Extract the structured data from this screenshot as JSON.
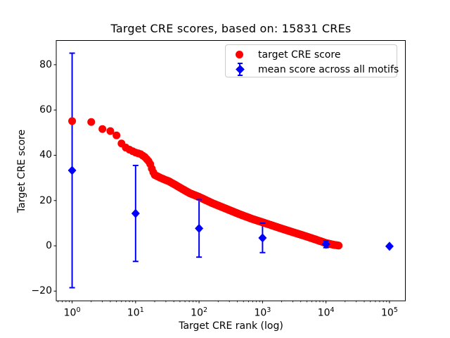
{
  "chart_data": {
    "type": "scatter",
    "title": "Target CRE scores, based on: 15831 CREs",
    "xlabel": "Target CRE rank (log)",
    "ylabel": "Target CRE score",
    "x_scale": "log",
    "xlim_log10": [
      -0.25,
      5.25
    ],
    "ylim": [
      -24.3,
      90.7
    ],
    "x_tick_exponents": [
      0,
      1,
      2,
      3,
      4,
      5
    ],
    "x_tick_base": "10",
    "y_ticks": [
      -20,
      0,
      20,
      40,
      60,
      80
    ],
    "y_tick_labels": [
      "−20",
      "0",
      "20",
      "40",
      "60",
      "80"
    ],
    "grid": false,
    "legend_position": "upper right",
    "series": [
      {
        "name": "target CRE score",
        "color": "#ff0000",
        "marker": "circle",
        "n_points_depicted": 15831,
        "note": "dense rank-ordered score curve; anchor_points are sampled [rank, score] pairs read from the plot",
        "anchor_points": [
          [
            1,
            55.1
          ],
          [
            2,
            54.7
          ],
          [
            3,
            51.6
          ],
          [
            4,
            50.7
          ],
          [
            5,
            48.8
          ],
          [
            6,
            45.2
          ],
          [
            7,
            43.4
          ],
          [
            8,
            42.5
          ],
          [
            9,
            41.8
          ],
          [
            10,
            41.2
          ],
          [
            12,
            40.5
          ],
          [
            14,
            39.2
          ],
          [
            16,
            37.4
          ],
          [
            17,
            36.1
          ],
          [
            18,
            34.1
          ],
          [
            19,
            32.5
          ],
          [
            20,
            31.3
          ],
          [
            24,
            30.2
          ],
          [
            29,
            29.2
          ],
          [
            33,
            28.6
          ],
          [
            43,
            26.8
          ],
          [
            56,
            24.9
          ],
          [
            72,
            23.2
          ],
          [
            100,
            21.6
          ],
          [
            160,
            18.9
          ],
          [
            260,
            16.5
          ],
          [
            430,
            14.0
          ],
          [
            700,
            11.8
          ],
          [
            1000,
            10.4
          ],
          [
            2000,
            7.6
          ],
          [
            3100,
            5.9
          ],
          [
            4600,
            4.4
          ],
          [
            7000,
            2.7
          ],
          [
            10000,
            1.2
          ],
          [
            13000,
            0.5
          ],
          [
            15831,
            0.1
          ]
        ]
      },
      {
        "name": "mean score across all motifs",
        "color": "#0000ff",
        "marker": "diamond",
        "error_bars": true,
        "points": [
          {
            "x": 1,
            "mean": 33.3,
            "err": 51.8
          },
          {
            "x": 10,
            "mean": 14.3,
            "err": 21.2
          },
          {
            "x": 100,
            "mean": 7.7,
            "err": 12.7
          },
          {
            "x": 1000,
            "mean": 3.5,
            "err": 6.5
          },
          {
            "x": 10000,
            "mean": 0.7,
            "err": 1.5
          },
          {
            "x": 100000,
            "mean": -0.2,
            "err": 0.3
          }
        ]
      }
    ]
  }
}
